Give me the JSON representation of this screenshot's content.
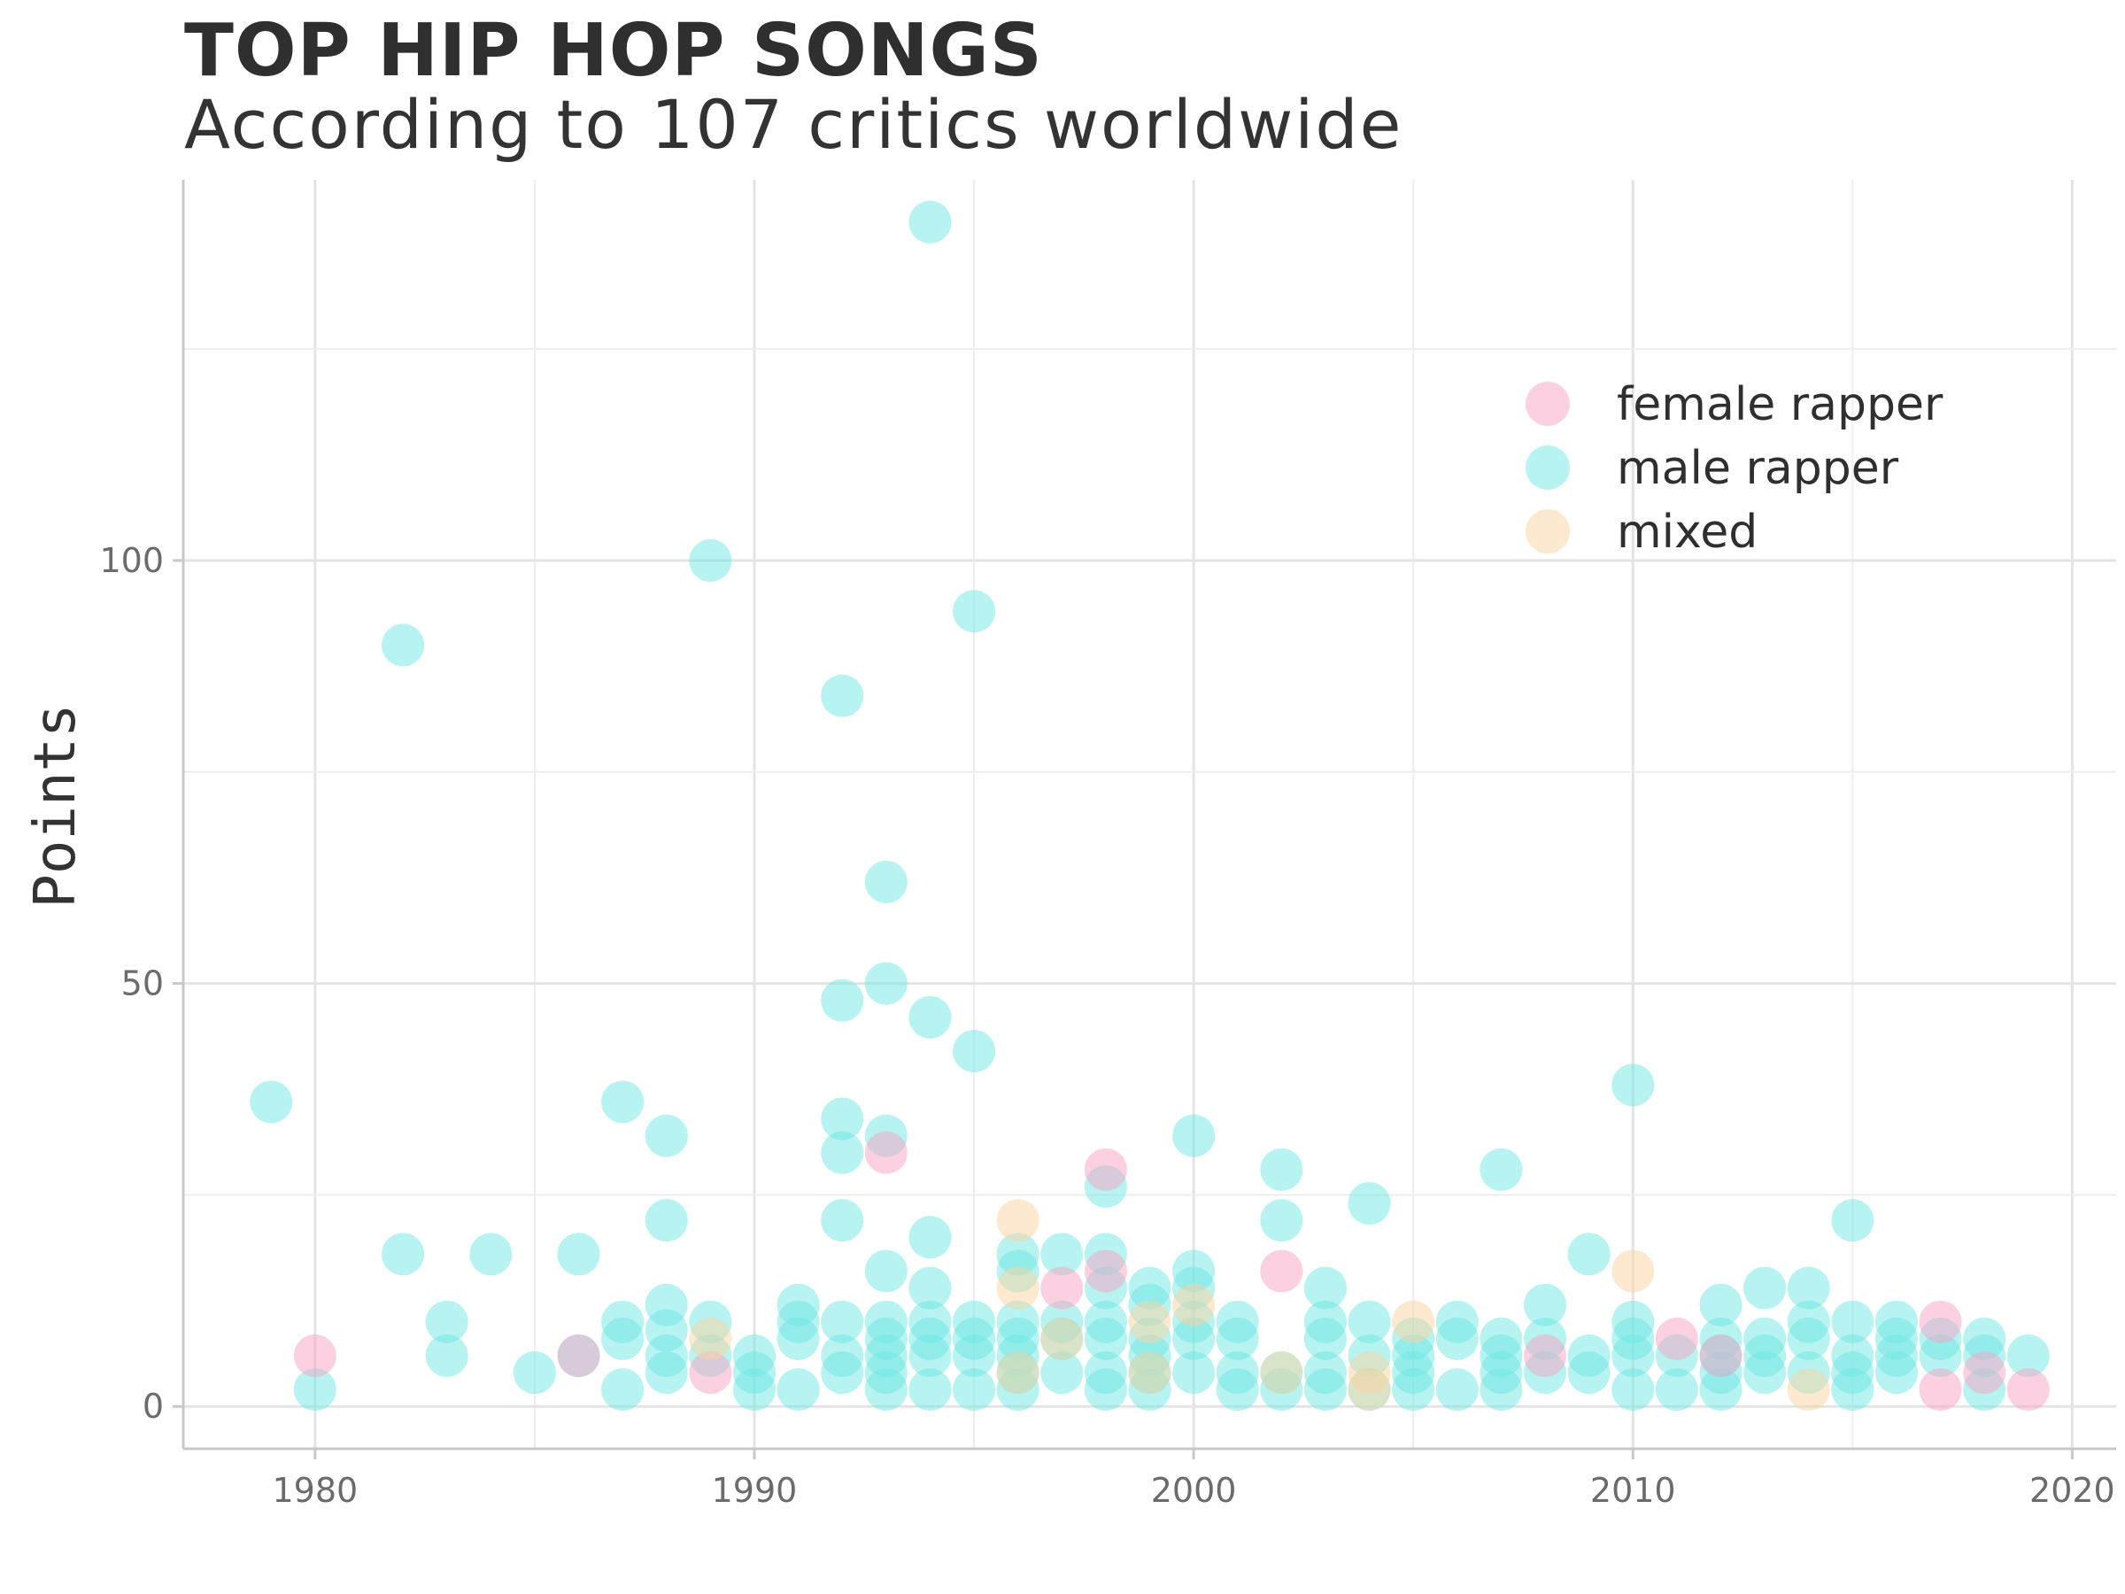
{
  "chart_data": {
    "type": "scatter",
    "title": "TOP HIP HOP SONGS",
    "subtitle": "According to 107 critics worldwide",
    "xlabel": "",
    "ylabel": "Points",
    "xlim": [
      1977,
      2021
    ],
    "ylim": [
      -5,
      145
    ],
    "x_ticks": [
      1980,
      1990,
      2000,
      2010,
      2020
    ],
    "y_ticks": [
      0,
      50,
      100
    ],
    "grid": true,
    "legend_position": "top-right",
    "colors": {
      "female rapper": "#f8a3c3",
      "male rapper": "#6ee8e3",
      "mixed": "#fcd3a0"
    },
    "series": [
      {
        "name": "female rapper",
        "points": [
          [
            1980,
            6
          ],
          [
            1986,
            6
          ],
          [
            1989,
            4
          ],
          [
            1993,
            30
          ],
          [
            1997,
            14
          ],
          [
            1998,
            28
          ],
          [
            1998,
            16
          ],
          [
            2002,
            16
          ],
          [
            2008,
            6
          ],
          [
            2011,
            8
          ],
          [
            2012,
            6
          ],
          [
            2017,
            10
          ],
          [
            2017,
            2
          ],
          [
            2018,
            4
          ],
          [
            2019,
            2
          ]
        ]
      },
      {
        "name": "male rapper",
        "points": [
          [
            1979,
            36
          ],
          [
            1980,
            2
          ],
          [
            1982,
            90
          ],
          [
            1982,
            18
          ],
          [
            1983,
            10
          ],
          [
            1983,
            6
          ],
          [
            1984,
            18
          ],
          [
            1985,
            4
          ],
          [
            1986,
            18
          ],
          [
            1986,
            6
          ],
          [
            1987,
            36
          ],
          [
            1987,
            10
          ],
          [
            1987,
            8
          ],
          [
            1987,
            2
          ],
          [
            1988,
            32
          ],
          [
            1988,
            22
          ],
          [
            1988,
            12
          ],
          [
            1988,
            9
          ],
          [
            1988,
            6
          ],
          [
            1988,
            4
          ],
          [
            1989,
            100
          ],
          [
            1989,
            10
          ],
          [
            1989,
            6
          ],
          [
            1990,
            6
          ],
          [
            1990,
            4
          ],
          [
            1990,
            2
          ],
          [
            1991,
            12
          ],
          [
            1991,
            10
          ],
          [
            1991,
            8
          ],
          [
            1991,
            2
          ],
          [
            1992,
            84
          ],
          [
            1992,
            48
          ],
          [
            1992,
            34
          ],
          [
            1992,
            30
          ],
          [
            1992,
            22
          ],
          [
            1992,
            10
          ],
          [
            1992,
            6
          ],
          [
            1992,
            4
          ],
          [
            1993,
            62
          ],
          [
            1993,
            50
          ],
          [
            1993,
            32
          ],
          [
            1993,
            16
          ],
          [
            1993,
            10
          ],
          [
            1993,
            8
          ],
          [
            1993,
            6
          ],
          [
            1993,
            4
          ],
          [
            1993,
            2
          ],
          [
            1994,
            140
          ],
          [
            1994,
            46
          ],
          [
            1994,
            20
          ],
          [
            1994,
            14
          ],
          [
            1994,
            10
          ],
          [
            1994,
            8
          ],
          [
            1994,
            6
          ],
          [
            1994,
            2
          ],
          [
            1995,
            94
          ],
          [
            1995,
            42
          ],
          [
            1995,
            10
          ],
          [
            1995,
            8
          ],
          [
            1995,
            6
          ],
          [
            1995,
            2
          ],
          [
            1996,
            18
          ],
          [
            1996,
            16
          ],
          [
            1996,
            10
          ],
          [
            1996,
            8
          ],
          [
            1996,
            6
          ],
          [
            1996,
            4
          ],
          [
            1996,
            2
          ],
          [
            1997,
            18
          ],
          [
            1997,
            10
          ],
          [
            1997,
            8
          ],
          [
            1997,
            4
          ],
          [
            1998,
            26
          ],
          [
            1998,
            18
          ],
          [
            1998,
            14
          ],
          [
            1998,
            10
          ],
          [
            1998,
            8
          ],
          [
            1998,
            4
          ],
          [
            1998,
            2
          ],
          [
            1999,
            14
          ],
          [
            1999,
            12
          ],
          [
            1999,
            8
          ],
          [
            1999,
            6
          ],
          [
            1999,
            4
          ],
          [
            1999,
            2
          ],
          [
            2000,
            32
          ],
          [
            2000,
            16
          ],
          [
            2000,
            14
          ],
          [
            2000,
            10
          ],
          [
            2000,
            8
          ],
          [
            2000,
            4
          ],
          [
            2001,
            10
          ],
          [
            2001,
            8
          ],
          [
            2001,
            4
          ],
          [
            2001,
            2
          ],
          [
            2002,
            28
          ],
          [
            2002,
            22
          ],
          [
            2002,
            4
          ],
          [
            2002,
            2
          ],
          [
            2003,
            14
          ],
          [
            2003,
            10
          ],
          [
            2003,
            8
          ],
          [
            2003,
            4
          ],
          [
            2003,
            2
          ],
          [
            2004,
            24
          ],
          [
            2004,
            10
          ],
          [
            2004,
            6
          ],
          [
            2004,
            2
          ],
          [
            2005,
            8
          ],
          [
            2005,
            6
          ],
          [
            2005,
            4
          ],
          [
            2005,
            2
          ],
          [
            2006,
            10
          ],
          [
            2006,
            8
          ],
          [
            2006,
            2
          ],
          [
            2007,
            28
          ],
          [
            2007,
            8
          ],
          [
            2007,
            6
          ],
          [
            2007,
            4
          ],
          [
            2007,
            2
          ],
          [
            2008,
            12
          ],
          [
            2008,
            8
          ],
          [
            2008,
            4
          ],
          [
            2009,
            18
          ],
          [
            2009,
            6
          ],
          [
            2009,
            4
          ],
          [
            2010,
            38
          ],
          [
            2010,
            10
          ],
          [
            2010,
            8
          ],
          [
            2010,
            6
          ],
          [
            2010,
            2
          ],
          [
            2011,
            6
          ],
          [
            2011,
            2
          ],
          [
            2012,
            12
          ],
          [
            2012,
            8
          ],
          [
            2012,
            6
          ],
          [
            2012,
            4
          ],
          [
            2012,
            2
          ],
          [
            2013,
            14
          ],
          [
            2013,
            8
          ],
          [
            2013,
            6
          ],
          [
            2013,
            4
          ],
          [
            2014,
            14
          ],
          [
            2014,
            10
          ],
          [
            2014,
            8
          ],
          [
            2014,
            4
          ],
          [
            2015,
            22
          ],
          [
            2015,
            10
          ],
          [
            2015,
            6
          ],
          [
            2015,
            4
          ],
          [
            2015,
            2
          ],
          [
            2016,
            10
          ],
          [
            2016,
            8
          ],
          [
            2016,
            6
          ],
          [
            2016,
            4
          ],
          [
            2017,
            8
          ],
          [
            2017,
            6
          ],
          [
            2018,
            8
          ],
          [
            2018,
            6
          ],
          [
            2018,
            2
          ],
          [
            2019,
            6
          ]
        ]
      },
      {
        "name": "mixed",
        "points": [
          [
            1989,
            8
          ],
          [
            1996,
            22
          ],
          [
            1996,
            14
          ],
          [
            1996,
            4
          ],
          [
            1997,
            8
          ],
          [
            1999,
            10
          ],
          [
            1999,
            4
          ],
          [
            2000,
            12
          ],
          [
            2002,
            4
          ],
          [
            2004,
            4
          ],
          [
            2004,
            2
          ],
          [
            2005,
            10
          ],
          [
            2010,
            16
          ],
          [
            2014,
            2
          ]
        ]
      }
    ]
  }
}
